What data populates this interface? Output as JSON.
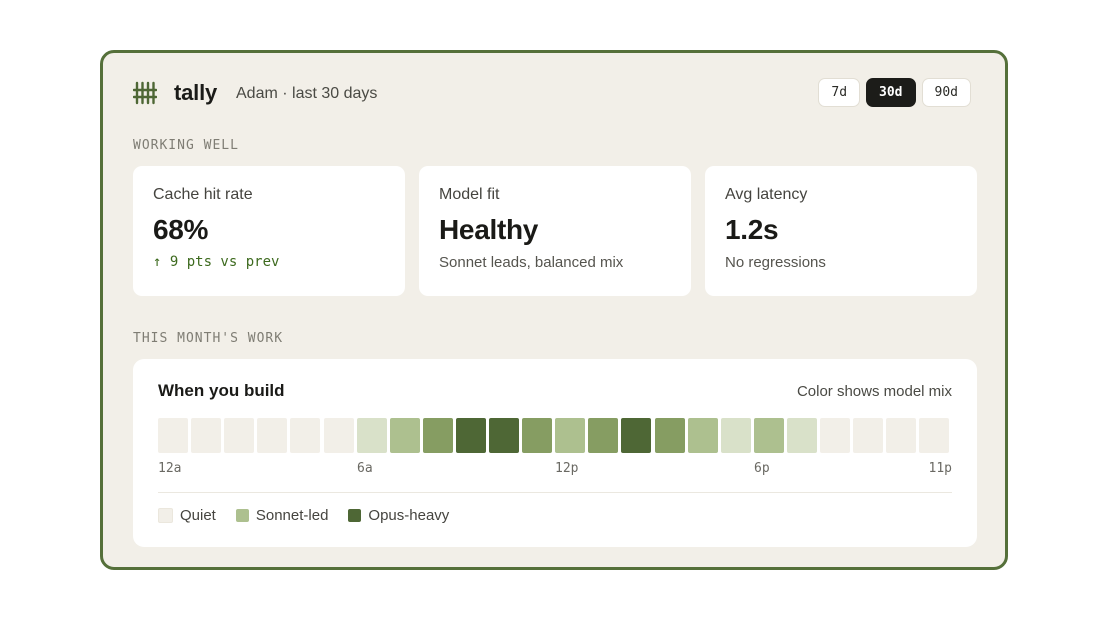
{
  "header": {
    "brand": "tally",
    "subtitle": "Adam · last 30 days",
    "logo_icon": "tally-marks-icon",
    "ranges": [
      {
        "label": "7d",
        "active": false
      },
      {
        "label": "30d",
        "active": true
      },
      {
        "label": "90d",
        "active": false
      }
    ]
  },
  "sections": {
    "working_well": "WORKING WELL",
    "this_month": "THIS MONTH'S WORK"
  },
  "cards": [
    {
      "label": "Cache hit rate",
      "value": "68%",
      "note": "↑ 9 pts vs prev",
      "note_color": "#3d6a1e"
    },
    {
      "label": "Model fit",
      "value": "Healthy",
      "note": "Sonnet leads, balanced mix"
    },
    {
      "label": "Avg latency",
      "value": "1.2s",
      "note": "No regressions"
    }
  ],
  "work": {
    "title": "When you build",
    "hint": "Color shows model mix",
    "hour_levels": [
      0,
      0,
      0,
      0,
      0,
      0,
      1,
      2,
      3,
      4,
      4,
      3,
      2,
      3,
      4,
      3,
      2,
      1,
      2,
      1,
      0,
      0,
      0,
      0
    ],
    "level_colors": [
      "#f2efe8",
      "#d9e1c9",
      "#adc08f",
      "#869d62",
      "#4e6735"
    ],
    "ticks": [
      "12a",
      "6a",
      "12p",
      "6p",
      "11p"
    ],
    "tick_hours": [
      0,
      6,
      12,
      18,
      23
    ],
    "legend": [
      {
        "label": "Quiet",
        "color": "#f2efe8"
      },
      {
        "label": "Sonnet-led",
        "color": "#adc08f"
      },
      {
        "label": "Opus-heavy",
        "color": "#4e6735"
      }
    ]
  },
  "colors": {
    "accent": "#55703a",
    "background": "#f2efe8",
    "positive": "#3d6a1e"
  }
}
